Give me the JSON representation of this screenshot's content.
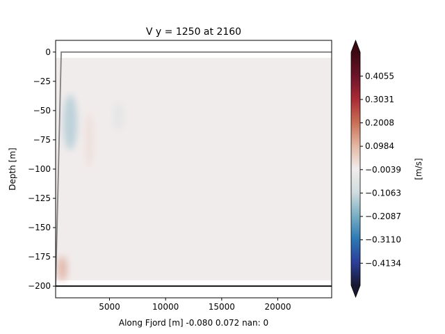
{
  "chart_data": {
    "type": "heatmap",
    "title": "V y = 1250 at 2160",
    "xlabel": "Along Fjord [m] -0.080 0.072 nan: 0",
    "ylabel": "Depth [m]",
    "xlim": [
      200,
      24800
    ],
    "ylim": [
      -210,
      10
    ],
    "xticks": [
      5000,
      10000,
      15000,
      20000
    ],
    "xtick_labels": [
      "5000",
      "10000",
      "15000",
      "20000"
    ],
    "yticks": [
      0,
      -25,
      -50,
      -75,
      -100,
      -125,
      -150,
      -175,
      -200
    ],
    "ytick_labels": [
      "0",
      "−25",
      "−50",
      "−75",
      "−100",
      "−125",
      "−150",
      "−175",
      "−200"
    ],
    "field_extent": {
      "x": [
        200,
        24800
      ],
      "y": [
        -195,
        -5
      ],
      "background_value": 0.0
    },
    "features": [
      {
        "name": "negative-core",
        "x": 1500,
        "y": -60,
        "value": -0.08
      },
      {
        "name": "negative-patch",
        "x": 5800,
        "y": -55,
        "value": -0.03
      },
      {
        "name": "positive-bottom",
        "x": 800,
        "y": -185,
        "value": 0.072
      },
      {
        "name": "positive-band",
        "x": 3200,
        "y": -75,
        "value": 0.02
      }
    ],
    "bathymetry_line": {
      "color": "#808080",
      "points": [
        [
          200,
          -200
        ],
        [
          700,
          0
        ],
        [
          24800,
          0
        ]
      ]
    },
    "bottom_line": {
      "color": "#000000",
      "y": -200
    },
    "colorbar": {
      "label": "[m/s]",
      "cmap": "balance",
      "range": [
        -0.51,
        0.51
      ],
      "ticks": [
        0.4055,
        0.3031,
        0.2008,
        0.0984,
        -0.0039,
        -0.1063,
        -0.2087,
        -0.311,
        -0.4134
      ],
      "tick_labels": [
        "0.4055",
        "0.3031",
        "0.2008",
        "0.0984",
        "−0.0039",
        "−0.1063",
        "−0.2087",
        "−0.3110",
        "−0.4134"
      ],
      "extend": "both",
      "colors": [
        "#171830",
        "#2b3f9b",
        "#2d79b4",
        "#7ab0c4",
        "#d2dddf",
        "#f1ecec",
        "#e3b6a2",
        "#c96e54",
        "#a92a35",
        "#6b1329",
        "#3c0912"
      ]
    }
  }
}
